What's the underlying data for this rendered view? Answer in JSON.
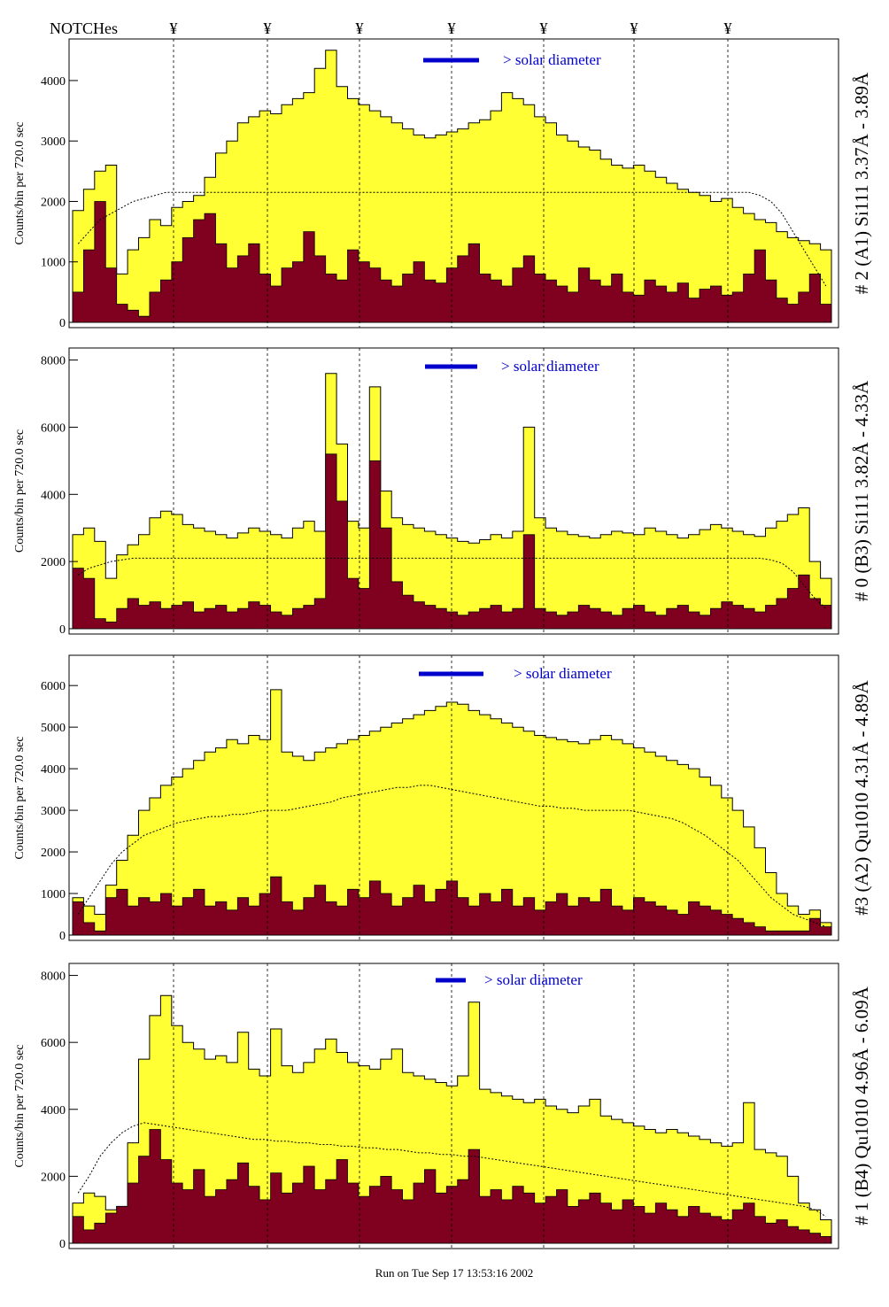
{
  "header": {
    "notches_label": "NOTCHes",
    "notch_symbol": "¥"
  },
  "footer": {
    "run_text": "Run on Tue Sep 17 13:53:16 2002"
  },
  "colors": {
    "total_fill": "#ffff33",
    "component_fill": "#800020",
    "outline": "#000000",
    "solar_bar": "#0000cc"
  },
  "chart_data": [
    {
      "type": "histogram",
      "side_label": "# 2 (A1) Si111  3.37Å - 3.89Å",
      "ylabel": "Counts/bin per    720.0 sec",
      "solar_label": "> solar diameter",
      "yticks": [
        "0",
        "1000",
        "2000",
        "3000",
        "4000"
      ],
      "ylim": [
        0,
        4600
      ],
      "notches": 7,
      "series": [
        {
          "name": "",
          "values": [
            1850,
            2200,
            2500,
            2600,
            800,
            1200,
            1400,
            1700,
            1600,
            1900,
            2000,
            2100,
            2400,
            2800,
            3000,
            3300,
            3400,
            3500,
            3450,
            3600,
            3700,
            3800,
            4200,
            4500,
            3900,
            3700,
            3600,
            3500,
            3400,
            3300,
            3200,
            3100,
            3050,
            3100,
            3150,
            3200,
            3300,
            3350,
            3500,
            3800,
            3700,
            3600,
            3400,
            3300,
            3100,
            3000,
            2900,
            2850,
            2700,
            2600,
            2550,
            2600,
            2500,
            2400,
            2300,
            2200,
            2150,
            2100,
            2000,
            2050,
            1900,
            1800,
            1700,
            1650,
            1500,
            1400,
            1350,
            1300,
            1200
          ]
        },
        {
          "name": "",
          "values": [
            500,
            1200,
            2000,
            900,
            300,
            200,
            100,
            500,
            700,
            1000,
            1400,
            1700,
            1800,
            1300,
            900,
            1100,
            1300,
            800,
            600,
            900,
            1000,
            1500,
            1100,
            800,
            700,
            1200,
            1000,
            900,
            700,
            600,
            800,
            1000,
            700,
            650,
            900,
            1100,
            1300,
            800,
            700,
            600,
            900,
            1100,
            800,
            700,
            600,
            500,
            900,
            700,
            600,
            800,
            500,
            450,
            700,
            600,
            500,
            650,
            400,
            550,
            600,
            450,
            500,
            800,
            1200,
            700,
            400,
            300,
            500,
            800,
            300
          ]
        },
        {
          "name": "",
          "values": [
            1300,
            1500,
            1700,
            1800,
            1900,
            2000,
            2050,
            2100,
            2150,
            2150,
            2150,
            2150,
            2150,
            2150,
            2150,
            2150,
            2150,
            2150,
            2150,
            2150,
            2150,
            2150,
            2150,
            2150,
            2150,
            2150,
            2150,
            2150,
            2150,
            2150,
            2150,
            2150,
            2150,
            2150,
            2150,
            2150,
            2150,
            2150,
            2150,
            2150,
            2150,
            2150,
            2150,
            2150,
            2150,
            2150,
            2150,
            2150,
            2150,
            2150,
            2150,
            2150,
            2150,
            2150,
            2150,
            2150,
            2150,
            2150,
            2150,
            2150,
            2150,
            2150,
            2100,
            2000,
            1800,
            1500,
            1200,
            900,
            600
          ]
        }
      ]
    },
    {
      "type": "histogram",
      "side_label": "# 0 (B3) Si111  3.82Å - 4.33Å",
      "ylabel": "Counts/bin per    720.0 sec",
      "solar_label": "> solar diameter",
      "yticks": [
        "0",
        "2000",
        "4000",
        "6000",
        "8000"
      ],
      "ylim": [
        0,
        8200
      ],
      "notches": 7,
      "series": [
        {
          "name": "",
          "values": [
            2800,
            3000,
            2600,
            1500,
            2200,
            2500,
            2800,
            3300,
            3500,
            3400,
            3100,
            3000,
            2900,
            2800,
            2700,
            2850,
            3000,
            2900,
            2800,
            2700,
            3000,
            3200,
            2900,
            7600,
            5500,
            3200,
            3000,
            7200,
            4100,
            3300,
            3100,
            3000,
            2900,
            2800,
            2700,
            2600,
            2550,
            2650,
            2800,
            2700,
            2900,
            6000,
            3300,
            3000,
            2900,
            2800,
            2750,
            2700,
            2800,
            2900,
            2850,
            2800,
            3000,
            2900,
            2800,
            2700,
            2800,
            2950,
            3100,
            3000,
            2900,
            2800,
            2750,
            3000,
            3200,
            3400,
            3600,
            2000,
            1500
          ]
        },
        {
          "name": "",
          "values": [
            1800,
            1500,
            300,
            200,
            600,
            900,
            700,
            800,
            600,
            700,
            800,
            500,
            600,
            700,
            500,
            600,
            800,
            700,
            500,
            400,
            600,
            700,
            900,
            5200,
            3800,
            1500,
            1200,
            5000,
            3000,
            1400,
            1000,
            800,
            700,
            600,
            500,
            400,
            500,
            600,
            700,
            500,
            600,
            2800,
            600,
            500,
            400,
            500,
            700,
            600,
            500,
            400,
            600,
            700,
            500,
            400,
            600,
            700,
            500,
            400,
            600,
            800,
            700,
            600,
            500,
            700,
            900,
            1200,
            1600,
            900,
            700
          ]
        },
        {
          "name": "",
          "values": [
            1600,
            1800,
            1900,
            2000,
            2050,
            2100,
            2100,
            2100,
            2100,
            2100,
            2100,
            2100,
            2100,
            2100,
            2100,
            2100,
            2100,
            2100,
            2100,
            2100,
            2100,
            2100,
            2100,
            2100,
            2100,
            2100,
            2100,
            2100,
            2100,
            2100,
            2100,
            2100,
            2100,
            2100,
            2100,
            2100,
            2100,
            2100,
            2100,
            2100,
            2100,
            2100,
            2100,
            2100,
            2100,
            2100,
            2100,
            2100,
            2100,
            2100,
            2100,
            2100,
            2100,
            2100,
            2100,
            2100,
            2100,
            2100,
            2100,
            2100,
            2100,
            2100,
            2100,
            2050,
            1950,
            1700,
            1300,
            900,
            600
          ]
        }
      ]
    },
    {
      "type": "histogram",
      "side_label": "#3 (A2) Qu1010  4.31Å - 4.89Å",
      "ylabel": "Counts/bin per    720.0 sec",
      "solar_label": "> solar diameter",
      "yticks": [
        "0",
        "1000",
        "2000",
        "3000",
        "4000",
        "5000",
        "6000"
      ],
      "ylim": [
        0,
        6600
      ],
      "notches": 7,
      "series": [
        {
          "name": "",
          "values": [
            900,
            700,
            500,
            1200,
            1800,
            2400,
            3000,
            3300,
            3600,
            3800,
            4000,
            4200,
            4400,
            4500,
            4700,
            4600,
            4800,
            4700,
            5900,
            4400,
            4300,
            4200,
            4400,
            4500,
            4600,
            4700,
            4800,
            4900,
            5000,
            5100,
            5200,
            5300,
            5400,
            5500,
            5600,
            5550,
            5400,
            5300,
            5200,
            5100,
            5000,
            4900,
            4800,
            4750,
            4700,
            4650,
            4600,
            4700,
            4800,
            4700,
            4600,
            4500,
            4400,
            4300,
            4200,
            4100,
            4000,
            3800,
            3600,
            3300,
            3000,
            2600,
            2100,
            1500,
            1000,
            700,
            500,
            600,
            300
          ]
        },
        {
          "name": "",
          "values": [
            800,
            300,
            100,
            900,
            1100,
            700,
            900,
            800,
            1000,
            700,
            900,
            1100,
            700,
            800,
            600,
            900,
            700,
            1000,
            1400,
            800,
            600,
            900,
            1200,
            800,
            700,
            1100,
            900,
            1300,
            1000,
            700,
            900,
            1200,
            800,
            1100,
            1300,
            900,
            700,
            1000,
            800,
            1100,
            700,
            900,
            600,
            800,
            1000,
            700,
            900,
            800,
            1100,
            700,
            600,
            900,
            800,
            700,
            600,
            500,
            800,
            700,
            600,
            500,
            400,
            300,
            200,
            100,
            100,
            100,
            100,
            400,
            200
          ]
        },
        {
          "name": "",
          "values": [
            500,
            900,
            1300,
            1700,
            2000,
            2200,
            2400,
            2500,
            2600,
            2700,
            2750,
            2800,
            2850,
            2850,
            2900,
            2900,
            2950,
            3000,
            3000,
            3000,
            3050,
            3100,
            3150,
            3200,
            3300,
            3350,
            3400,
            3450,
            3500,
            3550,
            3550,
            3600,
            3600,
            3550,
            3500,
            3450,
            3400,
            3350,
            3300,
            3250,
            3200,
            3150,
            3100,
            3100,
            3050,
            3050,
            3000,
            3000,
            3000,
            3000,
            3000,
            2950,
            2900,
            2850,
            2800,
            2700,
            2550,
            2400,
            2200,
            2000,
            1800,
            1500,
            1200,
            900,
            700,
            500,
            400,
            300,
            200
          ]
        }
      ]
    },
    {
      "type": "histogram",
      "side_label": "# 1 (B4) Qu1010 4.96Å - 6.09Å",
      "ylabel": "Counts/bin per    720.0 sec",
      "solar_label": "> solar diameter",
      "yticks": [
        "0",
        "2000",
        "4000",
        "6000",
        "8000"
      ],
      "ylim": [
        0,
        8200
      ],
      "notches": 7,
      "series": [
        {
          "name": "",
          "values": [
            1200,
            1500,
            1400,
            1000,
            1100,
            3000,
            5500,
            6800,
            7400,
            6500,
            6000,
            5800,
            5500,
            5600,
            5400,
            6300,
            5200,
            5000,
            6400,
            5300,
            5100,
            5400,
            5800,
            6100,
            5700,
            5400,
            5300,
            5200,
            5500,
            5800,
            5100,
            5000,
            4900,
            4800,
            4700,
            5000,
            7200,
            4600,
            4500,
            4400,
            4300,
            4200,
            4300,
            4100,
            4000,
            3900,
            4100,
            4300,
            3800,
            3700,
            3600,
            3500,
            3400,
            3300,
            3400,
            3300,
            3200,
            3100,
            3000,
            2900,
            3000,
            4200,
            2800,
            2700,
            2600,
            2000,
            1200,
            1000,
            700
          ]
        },
        {
          "name": "",
          "values": [
            800,
            400,
            600,
            900,
            1100,
            1800,
            2600,
            3400,
            2500,
            1800,
            1600,
            2200,
            1400,
            1600,
            1900,
            2400,
            1700,
            1300,
            2100,
            1500,
            1800,
            2300,
            1600,
            1900,
            2500,
            1800,
            1400,
            1700,
            2000,
            1600,
            1300,
            1800,
            2200,
            1500,
            1700,
            1900,
            2800,
            1400,
            1600,
            1300,
            1700,
            1500,
            1200,
            1400,
            1600,
            1100,
            1300,
            1500,
            1200,
            1000,
            1300,
            1100,
            900,
            1200,
            1000,
            800,
            1100,
            900,
            800,
            700,
            1000,
            1200,
            800,
            600,
            700,
            500,
            400,
            300,
            200
          ]
        },
        {
          "name": "",
          "values": [
            1500,
            2000,
            2600,
            3000,
            3300,
            3500,
            3600,
            3550,
            3500,
            3450,
            3400,
            3350,
            3300,
            3250,
            3200,
            3150,
            3100,
            3100,
            3050,
            3050,
            3000,
            3000,
            2950,
            2950,
            2900,
            2900,
            2850,
            2850,
            2800,
            2800,
            2750,
            2700,
            2700,
            2650,
            2650,
            2600,
            2600,
            2550,
            2500,
            2450,
            2400,
            2350,
            2300,
            2250,
            2200,
            2150,
            2100,
            2050,
            2000,
            1950,
            1900,
            1850,
            1800,
            1750,
            1700,
            1650,
            1600,
            1550,
            1500,
            1450,
            1400,
            1350,
            1300,
            1250,
            1200,
            1150,
            1100,
            1000,
            800
          ]
        }
      ]
    }
  ]
}
